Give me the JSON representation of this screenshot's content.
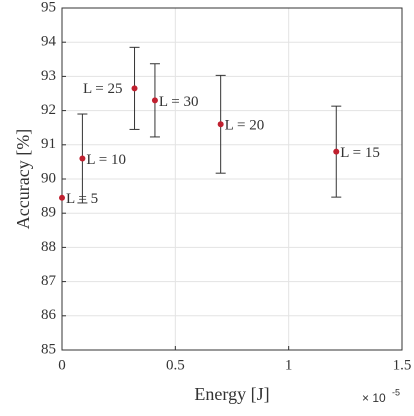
{
  "chart_data": {
    "type": "errorbar",
    "x_label": "Energy [J]",
    "y_label": "Accuracy [%]",
    "x_multiplier": "× 10",
    "x_exponent": "-5",
    "x": [
      0,
      0.09,
      0.32,
      0.41,
      0.7,
      1.21
    ],
    "values": [
      89.45,
      90.6,
      92.65,
      92.3,
      91.6,
      90.8
    ],
    "errors": [
      null,
      1.3,
      1.2,
      1.07,
      1.43,
      1.33
    ],
    "point_labels": [
      "L = 5",
      "L = 10",
      "L = 25",
      "L = 30",
      "L = 20",
      "L = 15"
    ],
    "color": "#c0202f",
    "error_color": "#333333",
    "xlim": [
      0,
      1.5
    ],
    "xticks": [
      0,
      0.5,
      1,
      1.5
    ],
    "ylim": [
      85,
      95
    ],
    "yticks": [
      85,
      86,
      87,
      88,
      89,
      90,
      91,
      92,
      93,
      94,
      95
    ],
    "grid": true
  }
}
